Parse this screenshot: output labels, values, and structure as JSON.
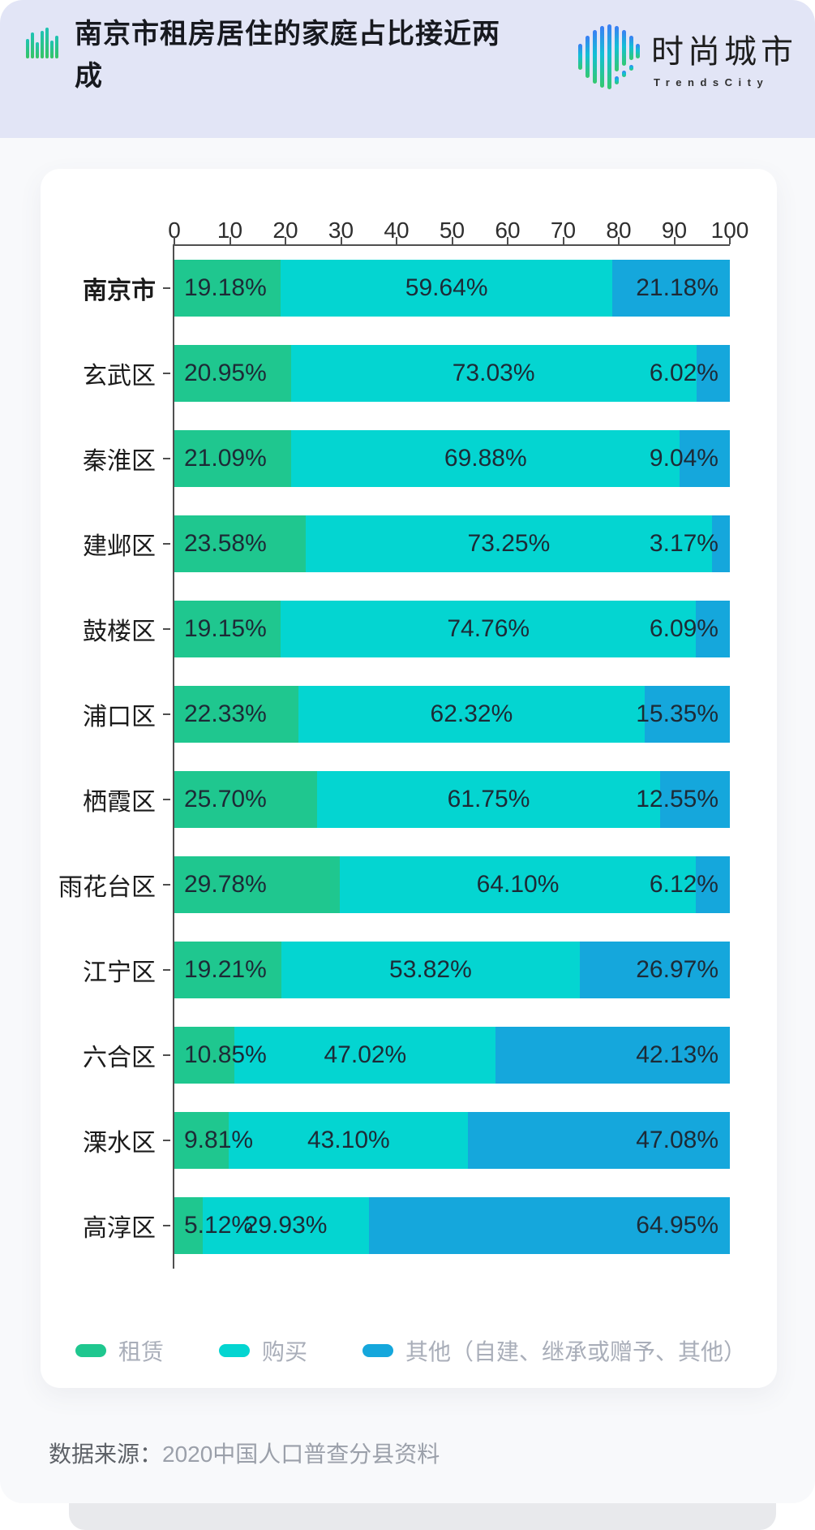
{
  "header": {
    "title": "南京市租房居住的家庭占比接近两成",
    "logo_text": "时尚城市",
    "logo_subtext": "TrendsCity"
  },
  "chart_data": {
    "type": "bar",
    "orientation": "horizontal-stacked",
    "title": "南京市租房居住的家庭占比接近两成",
    "x_axis": {
      "ticks": [
        0,
        10,
        20,
        30,
        40,
        50,
        60,
        70,
        80,
        90,
        100
      ],
      "min": 0,
      "max": 100,
      "position": "top"
    },
    "series_names": [
      "租赁",
      "购买",
      "其他（自建、继承或赠予、其他）"
    ],
    "series_colors": [
      "#1FC78F",
      "#04D5D1",
      "#15A7DC"
    ],
    "rows": [
      {
        "label": "南京市",
        "bold": true,
        "values": [
          19.18,
          59.64,
          21.18
        ],
        "labels": [
          "19.18%",
          "59.64%",
          "21.18%"
        ]
      },
      {
        "label": "玄武区",
        "bold": false,
        "values": [
          20.95,
          73.03,
          6.02
        ],
        "labels": [
          "20.95%",
          "73.03%",
          "6.02%"
        ]
      },
      {
        "label": "秦淮区",
        "bold": false,
        "values": [
          21.09,
          69.88,
          9.04
        ],
        "labels": [
          "21.09%",
          "69.88%",
          "9.04%"
        ]
      },
      {
        "label": "建邺区",
        "bold": false,
        "values": [
          23.58,
          73.25,
          3.17
        ],
        "labels": [
          "23.58%",
          "73.25%",
          "3.17%"
        ]
      },
      {
        "label": "鼓楼区",
        "bold": false,
        "values": [
          19.15,
          74.76,
          6.09
        ],
        "labels": [
          "19.15%",
          "74.76%",
          "6.09%"
        ]
      },
      {
        "label": "浦口区",
        "bold": false,
        "values": [
          22.33,
          62.32,
          15.35
        ],
        "labels": [
          "22.33%",
          "62.32%",
          "15.35%"
        ]
      },
      {
        "label": "栖霞区",
        "bold": false,
        "values": [
          25.7,
          61.75,
          12.55
        ],
        "labels": [
          "25.70%",
          "61.75%",
          "12.55%"
        ]
      },
      {
        "label": "雨花台区",
        "bold": false,
        "values": [
          29.78,
          64.1,
          6.12
        ],
        "labels": [
          "29.78%",
          "64.10%",
          "6.12%"
        ]
      },
      {
        "label": "江宁区",
        "bold": false,
        "values": [
          19.21,
          53.82,
          26.97
        ],
        "labels": [
          "19.21%",
          "53.82%",
          "26.97%"
        ]
      },
      {
        "label": "六合区",
        "bold": false,
        "values": [
          10.85,
          47.02,
          42.13
        ],
        "labels": [
          "10.85%",
          "47.02%",
          "42.13%"
        ]
      },
      {
        "label": "溧水区",
        "bold": false,
        "values": [
          9.81,
          43.1,
          47.08
        ],
        "labels": [
          "9.81%",
          "43.10%",
          "47.08%"
        ]
      },
      {
        "label": "高淳区",
        "bold": false,
        "values": [
          5.12,
          29.93,
          64.95
        ],
        "labels": [
          "5.12%",
          "29.93%",
          "64.95%"
        ]
      }
    ],
    "legend_position": "bottom"
  },
  "legend": {
    "items": [
      {
        "label": "租赁",
        "color": "#1FC78F"
      },
      {
        "label": "购买",
        "color": "#04D5D1"
      },
      {
        "label": "其他（自建、继承或赠予、其他）",
        "color": "#15A7DC"
      }
    ]
  },
  "source": {
    "prefix": "数据来源：",
    "text": "2020中国人口普查分县资料"
  }
}
